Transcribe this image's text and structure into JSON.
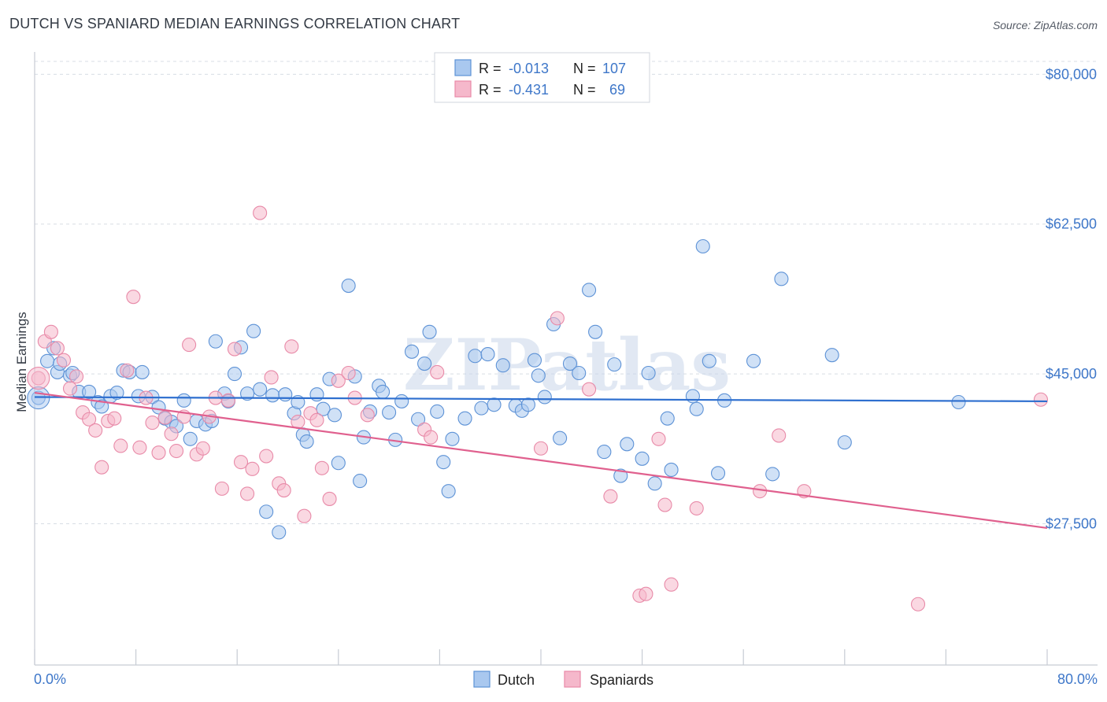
{
  "title": "DUTCH VS SPANIARD MEDIAN EARNINGS CORRELATION CHART",
  "source": "Source: ZipAtlas.com",
  "watermark": "ZIPatlas",
  "colors": {
    "dutch_fill": "#a9c8ef",
    "dutch_stroke": "#5d92d6",
    "dutch_line": "#2e6fcf",
    "span_fill": "#f5b8cb",
    "span_stroke": "#e88aa8",
    "span_line": "#e0608e",
    "tick_text": "#3e77c9",
    "grid": "#d8dde4"
  },
  "legend": {
    "rows": [
      {
        "r_label": "R =",
        "r_value": "-0.013",
        "n_label": "N =",
        "n_value": "107"
      },
      {
        "r_label": "R =",
        "r_value": "-0.431",
        "n_label": "N =",
        "n_value": "69"
      }
    ]
  },
  "bottom_legend": [
    "Dutch",
    "Spaniards"
  ],
  "chart_data": {
    "type": "scatter",
    "xlabel": "",
    "ylabel": "Median Earnings",
    "xlim": [
      0,
      80
    ],
    "ylim": [
      11000,
      81500
    ],
    "x_tick_labels": [
      "0.0%",
      "80.0%"
    ],
    "y_ticks": [
      {
        "value": 80000,
        "label": "$80,000"
      },
      {
        "value": 62500,
        "label": "$62,500"
      },
      {
        "value": 45000,
        "label": "$45,000"
      },
      {
        "value": 27500,
        "label": "$27,500"
      }
    ],
    "grid": "horizontal dashed",
    "series": [
      {
        "name": "Dutch",
        "trend": {
          "x": [
            0,
            80
          ],
          "y": [
            42300,
            41800
          ]
        },
        "points": [
          [
            0.3,
            42200
          ],
          [
            1.0,
            46500
          ],
          [
            1.5,
            48000
          ],
          [
            1.8,
            45200
          ],
          [
            2.0,
            46200
          ],
          [
            2.8,
            44800
          ],
          [
            3.0,
            45100
          ],
          [
            3.5,
            42900
          ],
          [
            4.3,
            42900
          ],
          [
            5.0,
            41700
          ],
          [
            5.3,
            41200
          ],
          [
            6.0,
            42400
          ],
          [
            6.5,
            42800
          ],
          [
            7.0,
            45400
          ],
          [
            7.5,
            45200
          ],
          [
            8.2,
            42400
          ],
          [
            8.5,
            45200
          ],
          [
            9.3,
            42300
          ],
          [
            9.8,
            41100
          ],
          [
            10.3,
            39800
          ],
          [
            10.8,
            39400
          ],
          [
            11.2,
            38900
          ],
          [
            11.8,
            41900
          ],
          [
            12.3,
            37400
          ],
          [
            12.8,
            39500
          ],
          [
            13.5,
            39100
          ],
          [
            14.0,
            39500
          ],
          [
            14.3,
            48800
          ],
          [
            15.0,
            42700
          ],
          [
            15.3,
            41800
          ],
          [
            15.8,
            45000
          ],
          [
            16.3,
            48100
          ],
          [
            16.8,
            42700
          ],
          [
            17.3,
            50000
          ],
          [
            17.8,
            43200
          ],
          [
            18.3,
            28900
          ],
          [
            18.8,
            42500
          ],
          [
            19.3,
            26500
          ],
          [
            19.8,
            42600
          ],
          [
            20.5,
            40400
          ],
          [
            20.8,
            41700
          ],
          [
            21.2,
            37900
          ],
          [
            21.5,
            37100
          ],
          [
            22.3,
            42600
          ],
          [
            22.8,
            40900
          ],
          [
            23.3,
            44400
          ],
          [
            23.7,
            40200
          ],
          [
            24.0,
            34600
          ],
          [
            24.8,
            55300
          ],
          [
            25.3,
            44700
          ],
          [
            25.7,
            32500
          ],
          [
            26.0,
            37600
          ],
          [
            26.5,
            40600
          ],
          [
            27.2,
            43600
          ],
          [
            27.5,
            42900
          ],
          [
            28.0,
            40500
          ],
          [
            28.5,
            37300
          ],
          [
            29.0,
            41800
          ],
          [
            29.8,
            47600
          ],
          [
            30.3,
            39700
          ],
          [
            30.8,
            46200
          ],
          [
            31.2,
            49900
          ],
          [
            31.8,
            40600
          ],
          [
            32.3,
            34700
          ],
          [
            32.7,
            31300
          ],
          [
            33.0,
            37400
          ],
          [
            34.0,
            39800
          ],
          [
            34.8,
            47100
          ],
          [
            35.3,
            41000
          ],
          [
            35.8,
            47300
          ],
          [
            36.3,
            41400
          ],
          [
            37.0,
            46000
          ],
          [
            38.0,
            41300
          ],
          [
            38.5,
            40700
          ],
          [
            39.0,
            41400
          ],
          [
            39.5,
            46600
          ],
          [
            39.8,
            44800
          ],
          [
            40.3,
            42300
          ],
          [
            41.0,
            50800
          ],
          [
            41.5,
            37500
          ],
          [
            42.3,
            46200
          ],
          [
            43.0,
            45100
          ],
          [
            43.8,
            54800
          ],
          [
            44.3,
            49900
          ],
          [
            45.0,
            35900
          ],
          [
            45.8,
            46100
          ],
          [
            46.3,
            33100
          ],
          [
            46.8,
            36800
          ],
          [
            48.0,
            35100
          ],
          [
            48.5,
            45100
          ],
          [
            49.0,
            32200
          ],
          [
            50.0,
            39800
          ],
          [
            50.3,
            33800
          ],
          [
            52.0,
            42400
          ],
          [
            52.3,
            40900
          ],
          [
            52.8,
            59900
          ],
          [
            53.3,
            46500
          ],
          [
            54.0,
            33400
          ],
          [
            54.5,
            41900
          ],
          [
            56.8,
            46500
          ],
          [
            58.3,
            33300
          ],
          [
            59.0,
            56100
          ],
          [
            63.0,
            47200
          ],
          [
            64.0,
            37000
          ],
          [
            73.0,
            41700
          ]
        ]
      },
      {
        "name": "Spaniards",
        "trend": {
          "x": [
            0,
            80
          ],
          "y": [
            42800,
            27000
          ]
        },
        "points": [
          [
            0.3,
            44500
          ],
          [
            0.8,
            48800
          ],
          [
            1.3,
            49900
          ],
          [
            1.8,
            48000
          ],
          [
            2.3,
            46600
          ],
          [
            2.8,
            43300
          ],
          [
            3.3,
            44700
          ],
          [
            3.8,
            40500
          ],
          [
            4.3,
            39700
          ],
          [
            4.8,
            38400
          ],
          [
            5.3,
            34100
          ],
          [
            5.8,
            39500
          ],
          [
            6.3,
            39800
          ],
          [
            6.8,
            36600
          ],
          [
            7.3,
            45400
          ],
          [
            7.8,
            54000
          ],
          [
            8.3,
            36400
          ],
          [
            8.8,
            42200
          ],
          [
            9.3,
            39300
          ],
          [
            9.8,
            35800
          ],
          [
            10.3,
            39900
          ],
          [
            10.8,
            38000
          ],
          [
            11.2,
            36000
          ],
          [
            11.8,
            40000
          ],
          [
            12.2,
            48400
          ],
          [
            12.8,
            35600
          ],
          [
            13.3,
            36300
          ],
          [
            13.8,
            40000
          ],
          [
            14.3,
            42200
          ],
          [
            14.8,
            31600
          ],
          [
            15.3,
            41900
          ],
          [
            15.8,
            47900
          ],
          [
            16.3,
            34700
          ],
          [
            16.8,
            31000
          ],
          [
            17.2,
            33900
          ],
          [
            17.8,
            63800
          ],
          [
            18.3,
            35400
          ],
          [
            18.7,
            44600
          ],
          [
            19.3,
            32200
          ],
          [
            19.7,
            31400
          ],
          [
            20.3,
            48200
          ],
          [
            20.8,
            39400
          ],
          [
            21.3,
            28400
          ],
          [
            21.8,
            40400
          ],
          [
            22.3,
            39600
          ],
          [
            22.7,
            34000
          ],
          [
            23.3,
            30400
          ],
          [
            24.0,
            44200
          ],
          [
            24.8,
            45100
          ],
          [
            25.3,
            42200
          ],
          [
            26.3,
            40200
          ],
          [
            30.8,
            38500
          ],
          [
            31.3,
            37600
          ],
          [
            31.8,
            45200
          ],
          [
            40.0,
            36300
          ],
          [
            41.3,
            51500
          ],
          [
            43.8,
            43200
          ],
          [
            45.5,
            30700
          ],
          [
            47.8,
            19100
          ],
          [
            48.3,
            19300
          ],
          [
            49.3,
            37400
          ],
          [
            49.8,
            29700
          ],
          [
            50.3,
            20400
          ],
          [
            52.3,
            29300
          ],
          [
            57.3,
            31300
          ],
          [
            58.8,
            37800
          ],
          [
            60.8,
            31300
          ],
          [
            69.8,
            18100
          ],
          [
            79.5,
            42000
          ]
        ]
      }
    ]
  }
}
